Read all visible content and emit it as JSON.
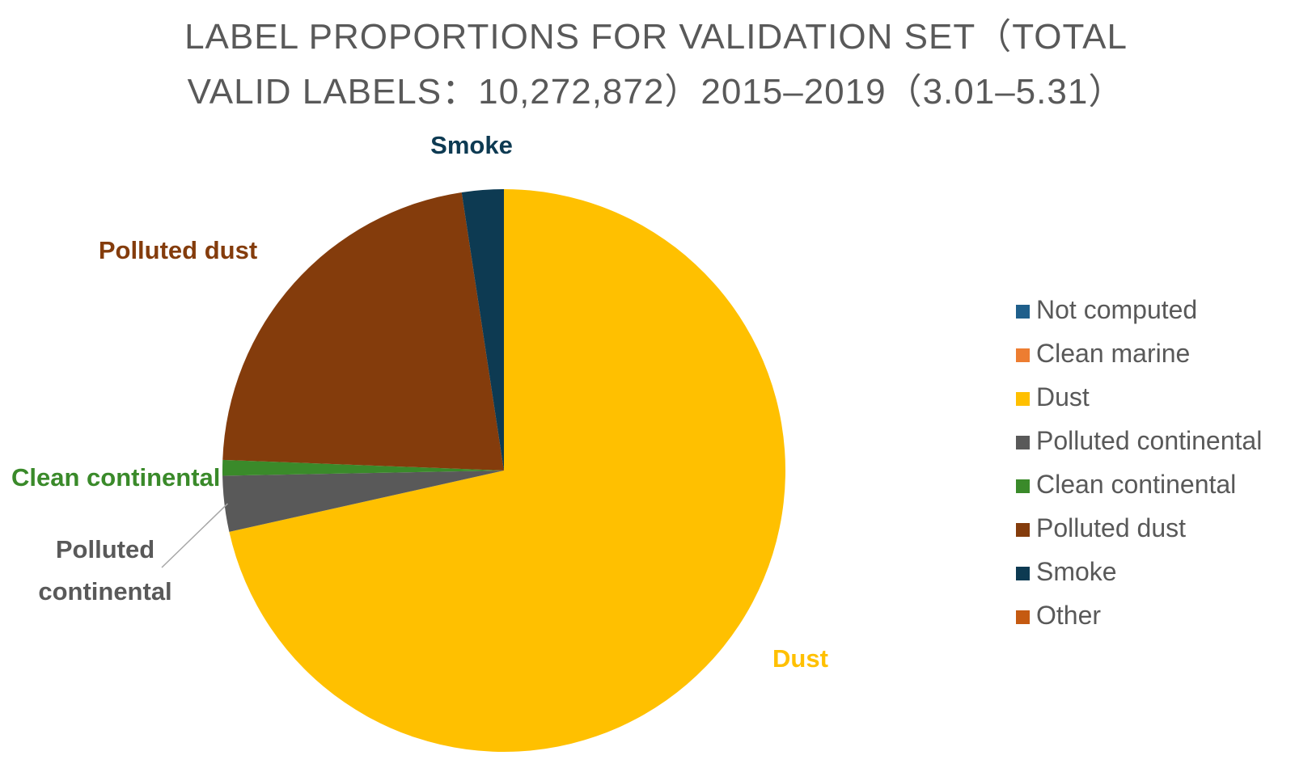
{
  "chart_data": {
    "type": "pie",
    "title_lines": [
      "LABEL PROPORTIONS FOR VALIDATION SET（TOTAL",
      "VALID LABELS：10,272,872）2015–2019（3.01–5.31）"
    ],
    "unit": "%",
    "legend_position": "right",
    "slices": [
      {
        "name": "Not computed",
        "value": 0,
        "color": "#1f5f8b",
        "label": ""
      },
      {
        "name": "Clean marine",
        "value": 0,
        "color": "#ed7d31",
        "label": ""
      },
      {
        "name": "Dust",
        "value": 71.5,
        "color": "#ffc000",
        "label": "Dust",
        "label_color": "#ffc000"
      },
      {
        "name": "Polluted continental",
        "value": 3.2,
        "color": "#595959",
        "label": "Polluted\ncontinental",
        "label_color": "#595959"
      },
      {
        "name": "Clean continental",
        "value": 0.9,
        "color": "#3a8a2a",
        "label": "Clean continental",
        "label_color": "#3a8a2a"
      },
      {
        "name": "Polluted dust",
        "value": 22.0,
        "color": "#843c0c",
        "label": "Polluted dust",
        "label_color": "#843c0c"
      },
      {
        "name": "Smoke",
        "value": 2.4,
        "color": "#0d3a52",
        "label": "Smoke",
        "label_color": "#0d3a52"
      },
      {
        "name": "Other",
        "value": 0,
        "color": "#c55a11",
        "label": ""
      }
    ]
  }
}
